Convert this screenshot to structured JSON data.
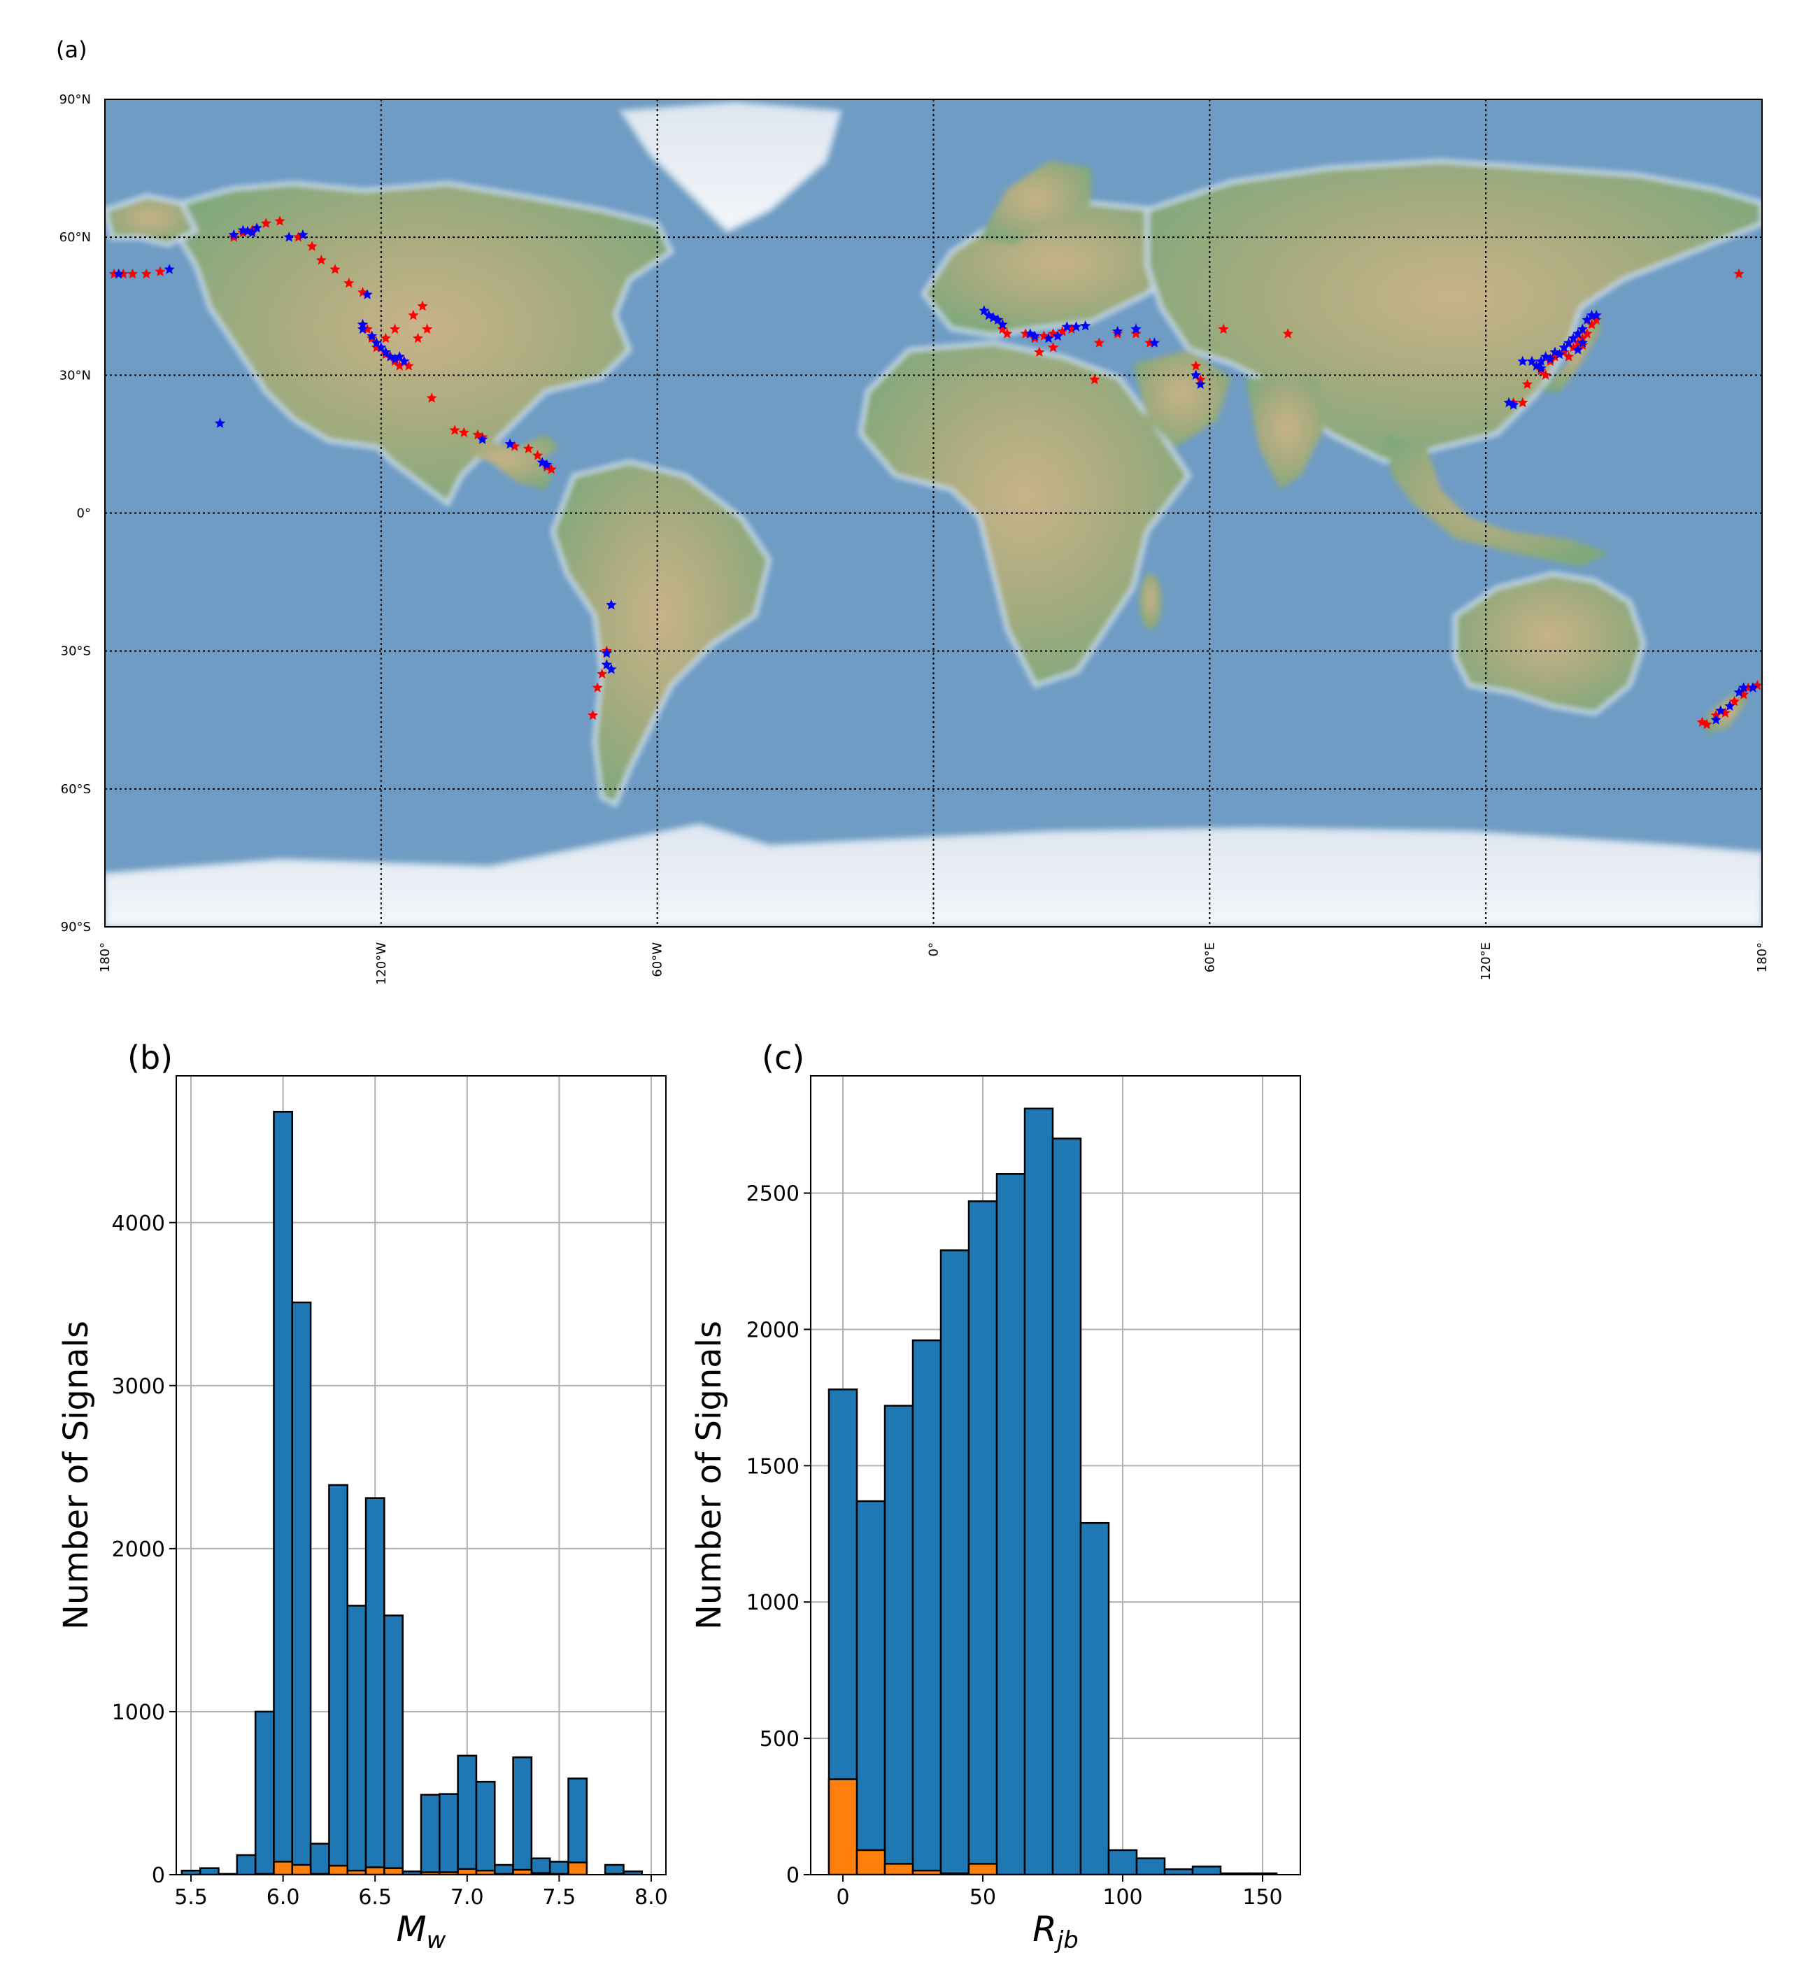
{
  "figure": {
    "panel_labels": [
      "(a)",
      "(b)",
      "(c)"
    ]
  },
  "colors": {
    "ocean": "#6f9cc4",
    "land_low": "#7ea87c",
    "land_mid": "#c9b28a",
    "ice": "#eef1f6",
    "event_red": "#ff0000",
    "event_blue": "#0000ff",
    "bar_blue": "#1f77b4",
    "bar_orange": "#ff7f0e",
    "grid": "#b0b0b0"
  },
  "chart_data": [
    {
      "panel": "(a)",
      "type": "scatter",
      "title": "",
      "projection": "equirectangular",
      "xlim": [
        -180,
        180
      ],
      "ylim": [
        -90,
        90
      ],
      "grid": "dotted",
      "lat_ticks": [
        {
          "value": 90,
          "label": "90°N"
        },
        {
          "value": 60,
          "label": "60°N"
        },
        {
          "value": 30,
          "label": "30°N"
        },
        {
          "value": 0,
          "label": "0°"
        },
        {
          "value": -30,
          "label": "30°S"
        },
        {
          "value": -60,
          "label": "60°S"
        },
        {
          "value": -90,
          "label": "90°S"
        }
      ],
      "lon_ticks": [
        {
          "value": -180,
          "label": "180°"
        },
        {
          "value": -120,
          "label": "120°W"
        },
        {
          "value": -60,
          "label": "60°W"
        },
        {
          "value": 0,
          "label": "0°"
        },
        {
          "value": 60,
          "label": "60°E"
        },
        {
          "value": 120,
          "label": "120°E"
        },
        {
          "value": 180,
          "label": "180°"
        }
      ],
      "series": [
        {
          "color": "red",
          "points": [
            [
              -178,
              52
            ],
            [
              -176,
              52
            ],
            [
              -174,
              52
            ],
            [
              -171,
              52
            ],
            [
              -168,
              52.5
            ],
            [
              -152,
              60
            ],
            [
              -150,
              61
            ],
            [
              -148,
              61.5
            ],
            [
              -145,
              63
            ],
            [
              -142,
              63.5
            ],
            [
              -138,
              60
            ],
            [
              -135,
              58
            ],
            [
              -133,
              55
            ],
            [
              -130,
              53
            ],
            [
              -127,
              50
            ],
            [
              -124,
              48
            ],
            [
              -124,
              41
            ],
            [
              -122,
              38
            ],
            [
              -121,
              36
            ],
            [
              -119,
              34.5
            ],
            [
              -118,
              34
            ],
            [
              -117,
              33
            ],
            [
              -116,
              32
            ],
            [
              -115,
              33
            ],
            [
              -119,
              38
            ],
            [
              -117,
              40
            ],
            [
              -113,
              43
            ],
            [
              -111,
              45
            ],
            [
              -112,
              38
            ],
            [
              -110,
              40
            ],
            [
              -109,
              25
            ],
            [
              -104,
              18
            ],
            [
              -102,
              17.5
            ],
            [
              -99,
              17
            ],
            [
              -98,
              16.5
            ],
            [
              -91,
              14.5
            ],
            [
              -88,
              14
            ],
            [
              -86,
              12.5
            ],
            [
              -84,
              10
            ],
            [
              -83,
              9.5
            ],
            [
              -71,
              -33
            ],
            [
              -72,
              -35
            ],
            [
              -71,
              -30
            ],
            [
              -73,
              -38
            ],
            [
              -74,
              -44
            ],
            [
              -70,
              -20
            ],
            [
              14,
              42
            ],
            [
              15,
              40
            ],
            [
              16,
              39
            ],
            [
              20,
              39
            ],
            [
              22,
              38
            ],
            [
              24,
              38.5
            ],
            [
              26,
              39
            ],
            [
              28,
              39.5
            ],
            [
              30,
              40
            ],
            [
              23,
              35
            ],
            [
              26,
              36
            ],
            [
              36,
              37
            ],
            [
              40,
              39
            ],
            [
              44,
              39
            ],
            [
              47,
              37
            ],
            [
              35,
              29
            ],
            [
              63,
              40
            ],
            [
              77,
              39
            ],
            [
              58,
              29
            ],
            [
              57,
              32
            ],
            [
              128,
              24
            ],
            [
              132,
              31
            ],
            [
              134,
              33
            ],
            [
              135,
              34
            ],
            [
              137,
              35
            ],
            [
              139,
              36
            ],
            [
              140,
              37
            ],
            [
              141,
              38
            ],
            [
              142,
              39
            ],
            [
              143,
              41
            ],
            [
              144,
              42
            ],
            [
              138,
              34
            ],
            [
              141,
              36.5
            ],
            [
              133,
              30
            ],
            [
              129,
              28
            ],
            [
              131,
              32
            ],
            [
              126,
              24
            ],
            [
              179,
              -37.5
            ],
            [
              177,
              -38
            ],
            [
              176,
              -39.5
            ],
            [
              174,
              -41
            ],
            [
              172,
              -43.5
            ],
            [
              170,
              -44
            ],
            [
              168,
              -46
            ],
            [
              167,
              -45.5
            ],
            [
              175,
              52
            ],
            [
              -121,
              37
            ],
            [
              -123,
              40
            ],
            [
              -114,
              32
            ]
          ]
        },
        {
          "color": "blue",
          "points": [
            [
              -155,
              19.5
            ],
            [
              -152,
              60.5
            ],
            [
              -150,
              61.5
            ],
            [
              -148,
              61
            ],
            [
              -147,
              62
            ],
            [
              -140,
              60
            ],
            [
              -137,
              60.5
            ],
            [
              -123,
              47.5
            ],
            [
              -124,
              41
            ],
            [
              -122,
              38.5
            ],
            [
              -121,
              37
            ],
            [
              -120,
              36
            ],
            [
              -119,
              35
            ],
            [
              -118,
              34
            ],
            [
              -117,
              33.5
            ],
            [
              -116,
              34
            ],
            [
              -115,
              33
            ],
            [
              -124,
              40
            ],
            [
              -98,
              16
            ],
            [
              -92,
              15
            ],
            [
              -85,
              11
            ],
            [
              -84,
              10.5
            ],
            [
              -70,
              -20
            ],
            [
              -71,
              -30.5
            ],
            [
              -71,
              -33
            ],
            [
              -70,
              -34
            ],
            [
              11,
              44
            ],
            [
              12,
              43
            ],
            [
              13,
              42.5
            ],
            [
              14,
              42
            ],
            [
              15,
              41
            ],
            [
              21,
              39
            ],
            [
              22,
              38.5
            ],
            [
              25,
              38
            ],
            [
              27,
              38.5
            ],
            [
              29,
              40.5
            ],
            [
              31,
              40.5
            ],
            [
              33,
              40.7
            ],
            [
              40,
              39.5
            ],
            [
              44,
              40
            ],
            [
              48,
              37
            ],
            [
              57,
              30
            ],
            [
              58,
              28
            ],
            [
              125,
              24
            ],
            [
              126,
              23.5
            ],
            [
              128,
              33
            ],
            [
              130,
              33
            ],
            [
              131,
              32
            ],
            [
              132,
              33
            ],
            [
              133,
              34
            ],
            [
              135,
              35
            ],
            [
              136,
              34.5
            ],
            [
              137,
              36
            ],
            [
              138,
              37
            ],
            [
              139,
              38
            ],
            [
              140,
              39
            ],
            [
              141,
              40
            ],
            [
              142,
              42
            ],
            [
              143,
              43
            ],
            [
              144,
              43
            ],
            [
              140,
              35.5
            ],
            [
              141,
              37
            ],
            [
              132,
              31.5
            ],
            [
              134,
              33.5
            ],
            [
              175,
              -39
            ],
            [
              176,
              -38
            ],
            [
              173,
              -42
            ],
            [
              171,
              -43
            ],
            [
              170,
              -45
            ],
            [
              178,
              -38
            ],
            [
              -177,
              52
            ],
            [
              -166,
              53
            ],
            [
              -149,
              61.3
            ]
          ]
        }
      ]
    },
    {
      "panel": "(b)",
      "type": "bar",
      "subtype": "stacked-histogram",
      "xlabel": "M_w",
      "ylabel": "Number of Signals",
      "xlim": [
        5.42,
        8.08
      ],
      "ylim": [
        0,
        4900
      ],
      "xticks": [
        5.5,
        6.0,
        6.5,
        7.0,
        7.5,
        8.0
      ],
      "xtick_labels": [
        "5.5",
        "6.0",
        "6.5",
        "7.0",
        "7.5",
        "8.0"
      ],
      "yticks": [
        0,
        1000,
        2000,
        3000,
        4000
      ],
      "grid": true,
      "bin_width": 0.1,
      "bin_starts": [
        5.45,
        5.55,
        5.65,
        5.75,
        5.85,
        5.95,
        6.05,
        6.15,
        6.25,
        6.35,
        6.45,
        6.55,
        6.65,
        6.75,
        6.85,
        6.95,
        7.05,
        7.15,
        7.25,
        7.35,
        7.45,
        7.55,
        7.65,
        7.75,
        7.85
      ],
      "series": [
        {
          "color": "#1f77b4",
          "values": [
            25,
            40,
            5,
            120,
            1000,
            4680,
            3510,
            190,
            2390,
            1650,
            2310,
            1590,
            20,
            490,
            495,
            730,
            570,
            60,
            720,
            100,
            80,
            590,
            0,
            60,
            20
          ]
        },
        {
          "color": "#ff7f0e",
          "values": [
            0,
            0,
            0,
            0,
            5,
            80,
            60,
            5,
            55,
            25,
            45,
            40,
            0,
            15,
            15,
            35,
            25,
            5,
            30,
            10,
            5,
            75,
            0,
            5,
            0
          ]
        }
      ]
    },
    {
      "panel": "(c)",
      "type": "bar",
      "subtype": "stacked-histogram",
      "xlabel": "R_jb",
      "ylabel": "Number of Signals",
      "xlim": [
        -11.5,
        163.5
      ],
      "ylim": [
        0,
        2930
      ],
      "xticks": [
        0,
        50,
        100,
        150
      ],
      "xtick_labels": [
        "0",
        "50",
        "100",
        "150"
      ],
      "yticks": [
        0,
        500,
        1000,
        1500,
        2000,
        2500
      ],
      "grid": true,
      "bin_width": 10,
      "bin_starts": [
        -5,
        5,
        15,
        25,
        35,
        45,
        55,
        65,
        75,
        85,
        95,
        105,
        115,
        125,
        135,
        145
      ],
      "series": [
        {
          "color": "#1f77b4",
          "values": [
            1780,
            1370,
            1720,
            1960,
            2290,
            2470,
            2570,
            2810,
            2700,
            1290,
            90,
            60,
            20,
            30,
            5,
            5
          ]
        },
        {
          "color": "#ff7f0e",
          "values": [
            350,
            90,
            40,
            15,
            5,
            40,
            0,
            0,
            0,
            0,
            0,
            0,
            0,
            0,
            0,
            0
          ]
        }
      ]
    }
  ]
}
